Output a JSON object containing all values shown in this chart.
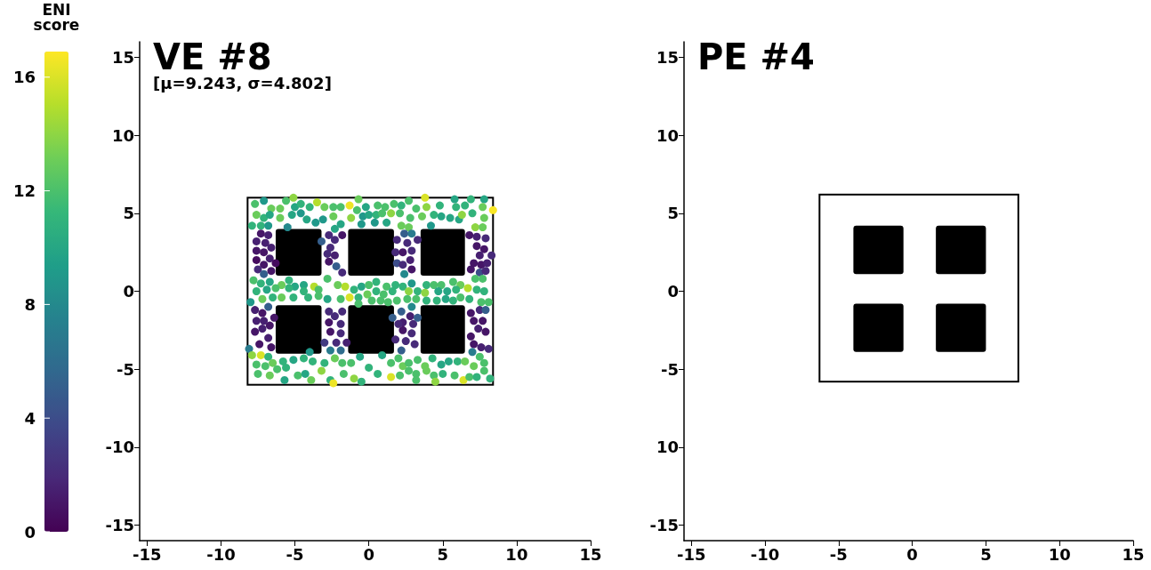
{
  "chart_data": [
    {
      "type": "scatter",
      "title": "VE #8",
      "subtitle": "[μ=9.243, σ=4.802]",
      "clabel": "ENI score",
      "clim": [
        0,
        16.9
      ],
      "cticks": [
        0,
        4,
        8,
        12,
        16
      ],
      "xlim": [
        -15.5,
        15
      ],
      "ylim": [
        -16,
        16
      ],
      "xticks": [
        -15,
        -10,
        -5,
        0,
        5,
        10,
        15
      ],
      "yticks": [
        -15,
        -10,
        -5,
        0,
        5,
        10,
        15
      ],
      "grid": false,
      "x": [
        -7.7,
        -7.1,
        -6.6,
        -6.0,
        -5.6,
        -5.1,
        -5.0,
        -4.6,
        -4.0,
        -3.5,
        -3.0,
        -2.4,
        -1.9,
        -1.3,
        -0.7,
        -0.8,
        -0.2,
        -7.6,
        -7.1,
        -6.7,
        -6.0,
        -5.2,
        -4.6,
        -4.2,
        -3.6,
        -3.1,
        -2.4,
        -1.9,
        -1.2,
        -0.4,
        -7.9,
        -7.3,
        -6.8,
        -5.5,
        -2.3,
        -0.5,
        -7.3,
        -6.8,
        -7.6,
        -7.0,
        -6.6,
        -7.6,
        -7.1,
        -7.6,
        -6.7,
        -6.3,
        -7.1,
        -7.5,
        -7.1,
        -6.6,
        -2.7,
        -3.2,
        -2.3,
        -1.8,
        -2.6,
        -2.8,
        -2.3,
        -2.7,
        -2.2,
        -1.8,
        -7.8,
        -7.3,
        -6.7,
        -5.9,
        -5.4,
        -5.0,
        -4.4,
        -3.7,
        -3.4,
        -2.8,
        -2.1,
        -1.6,
        -1.0,
        -0.5,
        0.0,
        -7.6,
        -6.9,
        -6.3,
        -5.4,
        -4.4,
        -7.2,
        -6.5,
        -5.9,
        -5.1,
        -4.1,
        -3.4,
        -2.8,
        -1.9,
        -1.3,
        -0.7,
        -8.0,
        -0.7,
        -6.8,
        -7.7,
        -7.2,
        -6.4,
        -7.6,
        -7.1,
        -6.7,
        -7.7,
        -7.2,
        -6.8,
        -7.4,
        -6.6,
        -8.1,
        -2.7,
        -2.3,
        -1.8,
        -2.7,
        -1.9,
        -2.6,
        -1.9,
        -3.0,
        -2.2,
        -1.5,
        -2.6,
        -1.9,
        -7.9,
        -7.3,
        -6.8,
        -4.0,
        -7.6,
        -7.0,
        -6.5,
        -6.2,
        -5.8,
        -5.1,
        -5.6,
        -4.4,
        -3.8,
        -3.0,
        -2.3,
        -1.8,
        -1.2,
        -0.6,
        -7.5,
        -6.7,
        -5.7,
        -4.8,
        -4.3,
        -3.9,
        -3.2,
        -2.6,
        -2.4,
        -1.7,
        -1.0,
        -0.5,
        0.0,
        0.6,
        1.1,
        1.7,
        2.2,
        2.7,
        3.2,
        3.8,
        3.9,
        4.8,
        5.8,
        5.9,
        6.5,
        6.9,
        7.8,
        8.4,
        7.7,
        0.0,
        0.5,
        0.9,
        1.5,
        2.1,
        2.8,
        3.6,
        4.4,
        4.9,
        5.5,
        6.1,
        6.3,
        7.0,
        7.8,
        0.4,
        1.2,
        2.2,
        2.7,
        4.2,
        7.2,
        7.7,
        2.4,
        2.9,
        1.9,
        2.6,
        3.3,
        1.8,
        2.3,
        2.9,
        2.8,
        1.9,
        2.3,
        2.9,
        2.4,
        6.8,
        7.3,
        7.9,
        7.3,
        7.8,
        7.5,
        8.3,
        7.1,
        7.6,
        8.0,
        6.9,
        7.5,
        7.9,
        7.2,
        7.7,
        0.5,
        1.2,
        1.8,
        2.3,
        2.9,
        3.9,
        4.4,
        4.9,
        5.7,
        6.2,
        6.7,
        7.3,
        7.8,
        -0.1,
        0.5,
        1.0,
        1.6,
        2.7,
        3.3,
        3.8,
        4.7,
        5.3,
        5.9,
        0.2,
        0.8,
        1.3,
        1.9,
        2.6,
        3.2,
        3.9,
        4.6,
        5.2,
        5.7,
        6.2,
        6.8,
        7.6,
        8.1,
        2.2,
        2.9,
        1.6,
        2.3,
        2.8,
        3.3,
        2.0,
        3.0,
        2.3,
        2.9,
        1.8,
        2.5,
        3.1,
        2.2,
        6.9,
        7.5,
        7.9,
        7.1,
        7.7,
        7.4,
        7.9,
        6.9,
        7.1,
        7.6,
        8.1,
        7.0,
        7.5,
        0.9,
        1.5,
        2.0,
        2.3,
        2.7,
        3.3,
        3.8,
        4.3,
        4.9,
        5.4,
        6.0,
        6.5,
        7.1,
        7.8,
        0.6,
        1.5,
        2.1,
        2.7,
        3.2,
        3.2,
        3.9,
        4.4,
        4.5,
        5.0,
        5.8,
        6.4,
        6.8,
        7.3,
        8.2,
        7.8
      ],
      "values": [
        5.6,
        5.8,
        5.3,
        5.3,
        5.8,
        6.0,
        5.4,
        5.6,
        5.4,
        5.7,
        5.4,
        5.4,
        5.4,
        5.5,
        5.9,
        5.2,
        5.4,
        4.9,
        4.7,
        4.9,
        4.7,
        4.9,
        5.0,
        4.6,
        4.4,
        4.6,
        4.8,
        4.3,
        4.7,
        4.8,
        4.2,
        4.2,
        4.2,
        4.1,
        4.0,
        4.3,
        3.7,
        3.6,
        3.2,
        3.1,
        2.8,
        2.6,
        2.5,
        2.0,
        2.1,
        1.8,
        1.7,
        1.4,
        1.1,
        1.3,
        3.6,
        3.2,
        3.3,
        3.6,
        2.8,
        2.4,
        2.3,
        1.9,
        1.6,
        1.2,
        0.7,
        0.5,
        0.6,
        0.4,
        0.7,
        0.3,
        0.4,
        0.3,
        0.1,
        0.8,
        0.4,
        0.3,
        0.1,
        0.3,
        0.4,
        0.0,
        0.1,
        0.2,
        0.2,
        0.0,
        -0.5,
        -0.4,
        -0.4,
        -0.4,
        -0.4,
        -0.3,
        -0.5,
        -0.5,
        -0.4,
        -0.4,
        -0.7,
        -0.8,
        -1.0,
        -1.2,
        -1.4,
        -1.7,
        -1.9,
        -1.9,
        -2.2,
        -2.6,
        -2.4,
        -3.0,
        -3.4,
        -3.6,
        -3.7,
        -1.3,
        -1.6,
        -1.3,
        -2.0,
        -2.1,
        -2.6,
        -2.7,
        -3.3,
        -3.3,
        -3.3,
        -3.8,
        -3.8,
        -4.1,
        -4.1,
        -4.2,
        -3.9,
        -4.7,
        -4.8,
        -4.6,
        -5.0,
        -4.5,
        -4.4,
        -4.9,
        -4.3,
        -4.5,
        -4.6,
        -4.3,
        -4.6,
        -4.6,
        -4.2,
        -5.3,
        -5.4,
        -5.7,
        -5.4,
        -5.3,
        -5.7,
        -5.1,
        -5.7,
        -5.9,
        -5.3,
        -5.6,
        -5.8,
        -4.9,
        5.5,
        5.4,
        5.6,
        5.5,
        5.8,
        5.3,
        6.0,
        5.4,
        5.5,
        5.9,
        5.4,
        5.5,
        5.9,
        5.9,
        5.2,
        5.4,
        4.9,
        4.9,
        5.0,
        5.0,
        5.0,
        4.7,
        4.8,
        4.9,
        4.8,
        4.7,
        4.6,
        4.9,
        5.0,
        4.7,
        4.4,
        4.4,
        4.2,
        4.1,
        4.2,
        4.1,
        4.1,
        3.7,
        3.7,
        3.3,
        3.1,
        3.3,
        2.5,
        2.5,
        2.6,
        2.0,
        1.8,
        1.7,
        1.4,
        1.1,
        3.6,
        3.5,
        3.4,
        2.9,
        2.7,
        2.3,
        2.3,
        1.8,
        1.7,
        1.8,
        1.4,
        1.2,
        1.3,
        0.8,
        0.8,
        0.6,
        0.3,
        0.4,
        0.3,
        0.5,
        0.4,
        0.4,
        0.4,
        0.6,
        0.4,
        0.2,
        0.1,
        0.0,
        -0.2,
        0.0,
        -0.2,
        0.0,
        0.0,
        0.0,
        -0.1,
        0.0,
        0.0,
        0.1,
        -0.6,
        -0.6,
        -0.7,
        -0.6,
        -0.5,
        -0.5,
        -0.6,
        -0.6,
        -0.5,
        -0.6,
        -0.4,
        -0.5,
        -0.7,
        -0.7,
        -1.3,
        -1.0,
        -1.7,
        -2.0,
        -1.6,
        -1.7,
        -2.1,
        -2.1,
        -2.5,
        -2.7,
        -3.1,
        -3.2,
        -3.4,
        -3.8,
        -1.4,
        -1.2,
        -1.2,
        -1.9,
        -1.9,
        -2.4,
        -2.6,
        -2.9,
        -3.4,
        -3.6,
        -3.7,
        -3.9,
        -4.2,
        -4.1,
        -4.6,
        -4.3,
        -4.8,
        -4.6,
        -4.4,
        -4.8,
        -4.3,
        -4.7,
        -4.5,
        -4.5,
        -4.5,
        -4.8,
        -4.6,
        -5.3,
        -5.5,
        -5.4,
        -5.1,
        -5.3,
        -5.7,
        -5.1,
        -5.4,
        -5.8,
        -5.3,
        -5.4,
        -5.7,
        -5.5,
        -5.5,
        -5.6,
        -5.1
      ],
      "cvalues": [
        12,
        9,
        13,
        13,
        12,
        14,
        10,
        11,
        11,
        15,
        13,
        12,
        12,
        16.5,
        13,
        12,
        10,
        13,
        11,
        10,
        13,
        10,
        9,
        10,
        9,
        9,
        13,
        10,
        14,
        9,
        11,
        11,
        9,
        8,
        10,
        9,
        1,
        1.5,
        1.5,
        1.5,
        1.5,
        1,
        1,
        0.5,
        1.5,
        0.5,
        1,
        2,
        5,
        1,
        2,
        5,
        2,
        1,
        2,
        2,
        1.5,
        1,
        5,
        2,
        12,
        11,
        10,
        13,
        11,
        10,
        10,
        15,
        12,
        12,
        13,
        15,
        11,
        10,
        12,
        11,
        10,
        12,
        11,
        11,
        13,
        11,
        13,
        11,
        11,
        12,
        10,
        12,
        16,
        11,
        9,
        12,
        5,
        1.5,
        1,
        1,
        1.5,
        1.5,
        1,
        1,
        1.5,
        1.5,
        1,
        1,
        7,
        2,
        2,
        2,
        1,
        2,
        1,
        2,
        3,
        2,
        1.5,
        7,
        6,
        14,
        16,
        11,
        9,
        12,
        12,
        13,
        12,
        11,
        10,
        11,
        11,
        11,
        11,
        13,
        12,
        12,
        10,
        12,
        13,
        10,
        12,
        10,
        13,
        14,
        11,
        16.5,
        12,
        14,
        11,
        11,
        12,
        12,
        12,
        11,
        12,
        12,
        16,
        14,
        11,
        10,
        11,
        11,
        11,
        10,
        16.8,
        13,
        10,
        11,
        12,
        14,
        12,
        12,
        13,
        11,
        10,
        10,
        10,
        14,
        11,
        13,
        9,
        10,
        13,
        13,
        9,
        14,
        13,
        5,
        7,
        2,
        2,
        2,
        2,
        1,
        2,
        1.5,
        4,
        2,
        1,
        8,
        1,
        1.5,
        2,
        1,
        1,
        1.5,
        2,
        1,
        1,
        1.5,
        1,
        4,
        2,
        12,
        12,
        11,
        12,
        11,
        11,
        9,
        11,
        12,
        12,
        12,
        13,
        15,
        11,
        11,
        13,
        11,
        12,
        11,
        14,
        11,
        14,
        10,
        10,
        11,
        12,
        12,
        12,
        12,
        12,
        12,
        11,
        11,
        10,
        11,
        12,
        11,
        12,
        12,
        5,
        8,
        5,
        1.5,
        1.5,
        5,
        2,
        2,
        1,
        2,
        2,
        2,
        2,
        5,
        1,
        2,
        5,
        1,
        1,
        1.5,
        1,
        1,
        1,
        1.5,
        2,
        7,
        12,
        10,
        12,
        12,
        13,
        12,
        12,
        13,
        11,
        10,
        10,
        11,
        13,
        13,
        12,
        11,
        16,
        12,
        12,
        12,
        12,
        13,
        12,
        14,
        11,
        12,
        16,
        12,
        11,
        11,
        12
      ]
    },
    {
      "type": "scatter",
      "title": "PE #4",
      "xlim": [
        -15.5,
        15
      ],
      "ylim": [
        -16,
        16
      ],
      "xticks": [
        -15,
        -10,
        -5,
        0,
        5,
        10,
        15
      ],
      "yticks": [
        -15,
        {
          "value": -10,
          "label": "10"
        },
        -5,
        0,
        5,
        10,
        15
      ],
      "grid": false
    }
  ]
}
